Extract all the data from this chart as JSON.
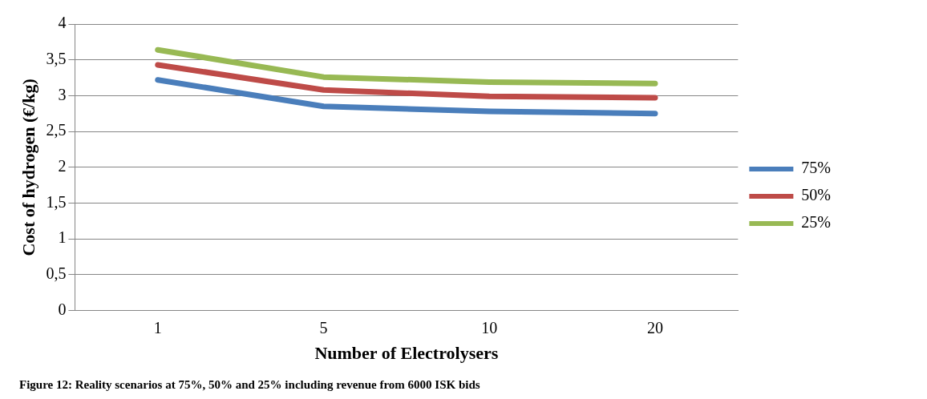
{
  "chart_data": {
    "type": "line",
    "xlabel": "Number of Electrolysers",
    "ylabel": "Cost of hydrogen (€/kg)",
    "categories": [
      "1",
      "5",
      "10",
      "20"
    ],
    "series": [
      {
        "name": "75%",
        "color": "#4a7ebb",
        "values": [
          3.22,
          2.85,
          2.78,
          2.75
        ]
      },
      {
        "name": "50%",
        "color": "#be4b48",
        "values": [
          3.43,
          3.08,
          2.99,
          2.97
        ]
      },
      {
        "name": "25%",
        "color": "#98b954",
        "values": [
          3.64,
          3.26,
          3.19,
          3.17
        ]
      }
    ],
    "ylim": [
      0,
      4
    ],
    "yticks": [
      0,
      {
        "value": 0.5,
        "label": "0,5"
      },
      1,
      {
        "value": 1.5,
        "label": "1,5"
      },
      2,
      {
        "value": 2.5,
        "label": "2,5"
      },
      3,
      {
        "value": 3.5,
        "label": "3,5"
      },
      4
    ],
    "grid": "y",
    "legend": "right",
    "marker": "none",
    "line_style": "solid",
    "annotations": [
      "Figure 12: Reality scenarios at 75%, 50% and 25% including revenue from 6000 ISK bids"
    ]
  }
}
